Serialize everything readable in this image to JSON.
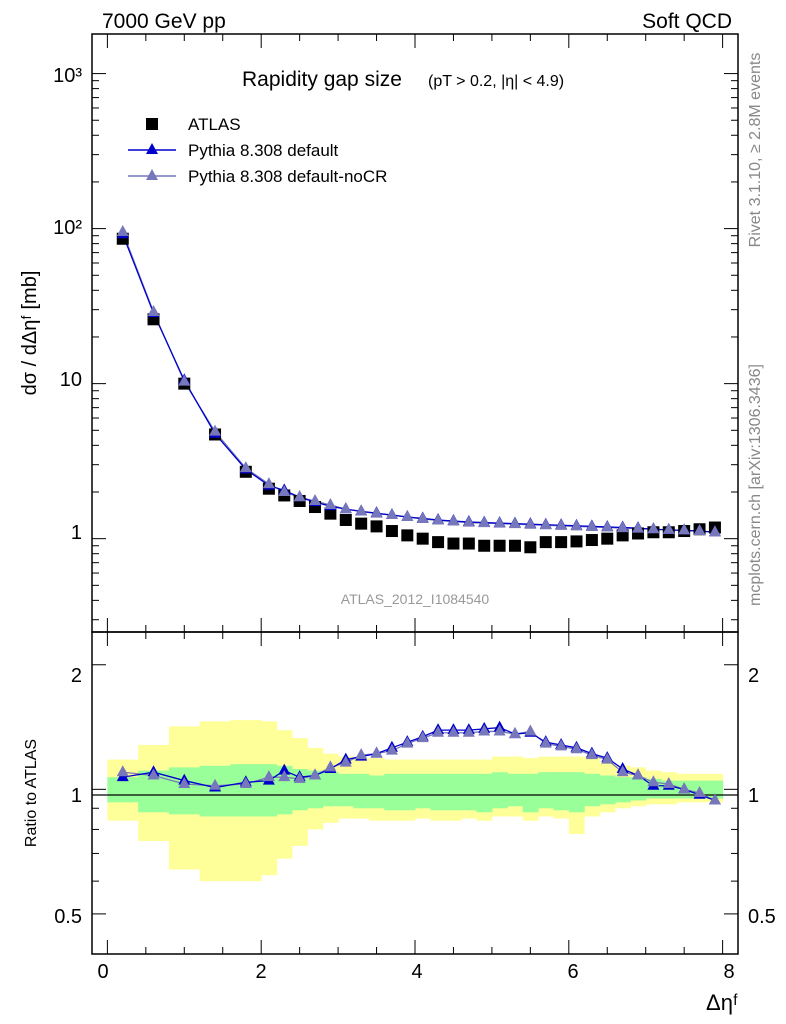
{
  "header": {
    "left": "7000 GeV pp",
    "right": "Soft QCD"
  },
  "side_labels": {
    "rivet": "Rivet 3.1.10, ≥ 2.8M events",
    "mcplots": "mcplots.cern.ch [arXiv:1306.3436]"
  },
  "analysis_id": "ATLAS_2012_I1084540",
  "colors": {
    "atlas": "#000000",
    "default": "#0000cc",
    "nocr": "#7777bb",
    "band_inner": "#99ff99",
    "band_outer": "#ffff99"
  },
  "chart_data": [
    {
      "type": "scatter",
      "title": "Rapidity gap size",
      "title_suffix": "(pT > 0.2, |η| < 4.9)",
      "ylabel": "dσ / dΔηᶠ [mb]",
      "xlabel": "Δηᶠ",
      "x_range": [
        -0.2,
        8.2
      ],
      "y_range": [
        0.25,
        1800
      ],
      "y_scale": "log",
      "y_ticks": [
        "1",
        "10",
        "10²",
        "10³"
      ],
      "legend_position": "top-left",
      "x": [
        0.2,
        0.6,
        1.0,
        1.4,
        1.8,
        2.1,
        2.3,
        2.5,
        2.7,
        2.9,
        3.1,
        3.3,
        3.5,
        3.7,
        3.9,
        4.1,
        4.3,
        4.5,
        4.7,
        4.9,
        5.1,
        5.3,
        5.5,
        5.7,
        5.9,
        6.1,
        6.3,
        6.5,
        6.7,
        6.9,
        7.1,
        7.3,
        7.5,
        7.7,
        7.9
      ],
      "series": [
        {
          "name": "ATLAS",
          "marker": "square",
          "values": [
            86,
            26,
            10,
            4.7,
            2.7,
            2.1,
            1.9,
            1.75,
            1.6,
            1.45,
            1.32,
            1.25,
            1.2,
            1.12,
            1.05,
            1.0,
            0.95,
            0.93,
            0.93,
            0.9,
            0.9,
            0.9,
            0.88,
            0.95,
            0.95,
            0.96,
            0.98,
            1.0,
            1.05,
            1.08,
            1.1,
            1.1,
            1.12,
            1.15,
            1.18
          ]
        },
        {
          "name": "Pythia 8.308 default",
          "marker": "triangle",
          "values": [
            92,
            28.5,
            10.5,
            4.75,
            2.8,
            2.2,
            2.05,
            1.85,
            1.72,
            1.62,
            1.55,
            1.5,
            1.46,
            1.42,
            1.38,
            1.35,
            1.32,
            1.3,
            1.28,
            1.27,
            1.26,
            1.25,
            1.24,
            1.23,
            1.22,
            1.21,
            1.2,
            1.19,
            1.18,
            1.17,
            1.15,
            1.14,
            1.13,
            1.12,
            1.1
          ]
        },
        {
          "name": "Pythia 8.308 default-noCR",
          "marker": "triangle",
          "values": [
            95,
            29,
            10.3,
            4.9,
            2.85,
            2.25,
            2.0,
            1.85,
            1.75,
            1.65,
            1.55,
            1.5,
            1.45,
            1.42,
            1.38,
            1.34,
            1.31,
            1.29,
            1.27,
            1.26,
            1.25,
            1.24,
            1.23,
            1.22,
            1.21,
            1.2,
            1.19,
            1.18,
            1.17,
            1.16,
            1.15,
            1.14,
            1.13,
            1.12,
            1.1
          ]
        }
      ]
    },
    {
      "type": "line",
      "ylabel": "Ratio to ATLAS",
      "xlabel": "Δηᶠ",
      "x_range": [
        -0.2,
        8.2
      ],
      "y_range": [
        0.4,
        2.4
      ],
      "y_scale": "log",
      "x_ticks": [
        "0",
        "2",
        "4",
        "6",
        "8"
      ],
      "y_ticks": [
        "0.5",
        "1",
        "2"
      ],
      "x": [
        0.2,
        0.6,
        1.0,
        1.4,
        1.8,
        2.1,
        2.3,
        2.5,
        2.7,
        2.9,
        3.1,
        3.3,
        3.5,
        3.7,
        3.9,
        4.1,
        4.3,
        4.5,
        4.7,
        4.9,
        5.1,
        5.3,
        5.5,
        5.7,
        5.9,
        6.1,
        6.3,
        6.5,
        6.7,
        6.9,
        7.1,
        7.3,
        7.5,
        7.7,
        7.9
      ],
      "band_edges": [
        0.0,
        0.4,
        0.8,
        1.2,
        1.6,
        2.0,
        2.2,
        2.4,
        2.6,
        2.8,
        3.0,
        3.2,
        3.4,
        3.6,
        3.8,
        4.0,
        4.2,
        4.4,
        4.6,
        4.8,
        5.0,
        5.2,
        5.4,
        5.6,
        5.8,
        6.0,
        6.2,
        6.4,
        6.6,
        6.8,
        7.0,
        7.2,
        7.4,
        7.6,
        7.8,
        8.0
      ],
      "band_inner": {
        "lower": [
          0.93,
          0.88,
          0.87,
          0.86,
          0.86,
          0.86,
          0.87,
          0.89,
          0.9,
          0.91,
          0.91,
          0.9,
          0.9,
          0.89,
          0.89,
          0.9,
          0.89,
          0.89,
          0.89,
          0.88,
          0.9,
          0.91,
          0.88,
          0.9,
          0.89,
          0.88,
          0.91,
          0.92,
          0.93,
          0.94,
          0.95,
          0.95,
          0.95,
          0.95,
          0.95
        ],
        "upper": [
          1.07,
          1.11,
          1.13,
          1.14,
          1.15,
          1.15,
          1.14,
          1.12,
          1.11,
          1.1,
          1.09,
          1.09,
          1.08,
          1.09,
          1.09,
          1.09,
          1.09,
          1.09,
          1.09,
          1.09,
          1.1,
          1.09,
          1.09,
          1.1,
          1.1,
          1.1,
          1.09,
          1.08,
          1.07,
          1.07,
          1.06,
          1.05,
          1.05,
          1.05,
          1.05
        ]
      },
      "band_outer": {
        "lower": [
          0.84,
          0.75,
          0.64,
          0.6,
          0.6,
          0.62,
          0.68,
          0.73,
          0.8,
          0.83,
          0.85,
          0.85,
          0.84,
          0.84,
          0.84,
          0.85,
          0.84,
          0.84,
          0.85,
          0.84,
          0.86,
          0.86,
          0.84,
          0.86,
          0.85,
          0.78,
          0.86,
          0.88,
          0.9,
          0.91,
          0.92,
          0.92,
          0.93,
          0.93,
          0.93
        ],
        "upper": [
          1.18,
          1.28,
          1.42,
          1.46,
          1.47,
          1.46,
          1.39,
          1.33,
          1.26,
          1.22,
          1.2,
          1.19,
          1.19,
          1.18,
          1.18,
          1.18,
          1.18,
          1.18,
          1.18,
          1.18,
          1.2,
          1.2,
          1.19,
          1.2,
          1.2,
          1.2,
          1.2,
          1.16,
          1.14,
          1.13,
          1.11,
          1.1,
          1.09,
          1.09,
          1.09
        ]
      },
      "series": [
        {
          "name": "Pythia 8.308 default",
          "marker": "triangle",
          "values": [
            1.07,
            1.1,
            1.05,
            1.01,
            1.04,
            1.05,
            1.11,
            1.07,
            1.08,
            1.12,
            1.18,
            1.2,
            1.22,
            1.26,
            1.3,
            1.34,
            1.39,
            1.39,
            1.39,
            1.4,
            1.41,
            1.36,
            1.37,
            1.3,
            1.28,
            1.26,
            1.22,
            1.19,
            1.12,
            1.08,
            1.02,
            1.02,
            1.0,
            0.97,
            0.94
          ]
        },
        {
          "name": "Pythia 8.308 default-noCR",
          "marker": "triangle",
          "values": [
            1.1,
            1.08,
            1.03,
            1.02,
            1.03,
            1.07,
            1.07,
            1.06,
            1.08,
            1.13,
            1.16,
            1.21,
            1.22,
            1.24,
            1.29,
            1.33,
            1.37,
            1.37,
            1.37,
            1.38,
            1.38,
            1.36,
            1.38,
            1.29,
            1.27,
            1.25,
            1.21,
            1.18,
            1.1,
            1.08,
            1.04,
            1.03,
            1.0,
            0.98,
            0.94
          ]
        }
      ]
    }
  ]
}
